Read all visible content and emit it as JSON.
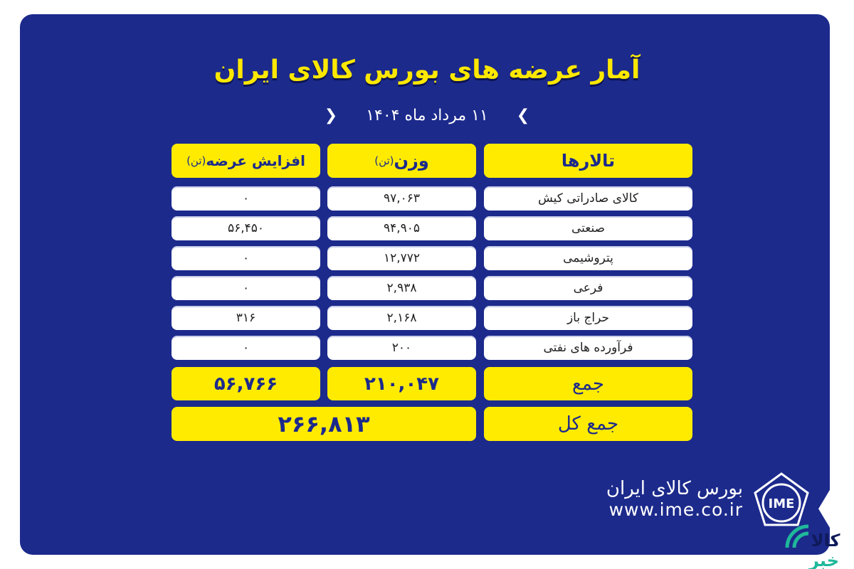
{
  "title": "آمار عرضه های بورس کالای ایران",
  "date": "۱۱ مرداد ماه ۱۴۰۴",
  "table": {
    "headers": {
      "hall": "تالارها",
      "weight": "وزن",
      "weight_unit": "(تن)",
      "increase": "افزایش عرضه",
      "increase_unit": "(تن)"
    },
    "rows": [
      {
        "hall": "کالای صادراتی کیش",
        "weight": "۹۷,۰۶۳",
        "increase": "۰"
      },
      {
        "hall": "صنعتی",
        "weight": "۹۴,۹۰۵",
        "increase": "۵۶,۴۵۰"
      },
      {
        "hall": "پتروشیمی",
        "weight": "۱۲,۷۷۲",
        "increase": "۰"
      },
      {
        "hall": "فرعی",
        "weight": "۲,۹۳۸",
        "increase": "۰"
      },
      {
        "hall": "حراج باز",
        "weight": "۲,۱۶۸",
        "increase": "۳۱۶"
      },
      {
        "hall": "فرآورده های نفتی",
        "weight": "۲۰۰",
        "increase": "۰"
      }
    ],
    "sum": {
      "label": "جمع",
      "weight": "۲۱۰,۰۴۷",
      "increase": "۵۶,۷۶۶"
    },
    "grand_total": {
      "label": "جمع کل",
      "value": "۲۶۶,۸۱۳"
    }
  },
  "brand": {
    "name": "بورس کالای ایران",
    "url": "www.ime.co.ir",
    "logo_text": "IME"
  },
  "watermark": {
    "text": "کالا خبر"
  },
  "colors": {
    "background": "#1c2a8c",
    "accent": "#ffeb00",
    "watermark": "#1fb89a"
  }
}
